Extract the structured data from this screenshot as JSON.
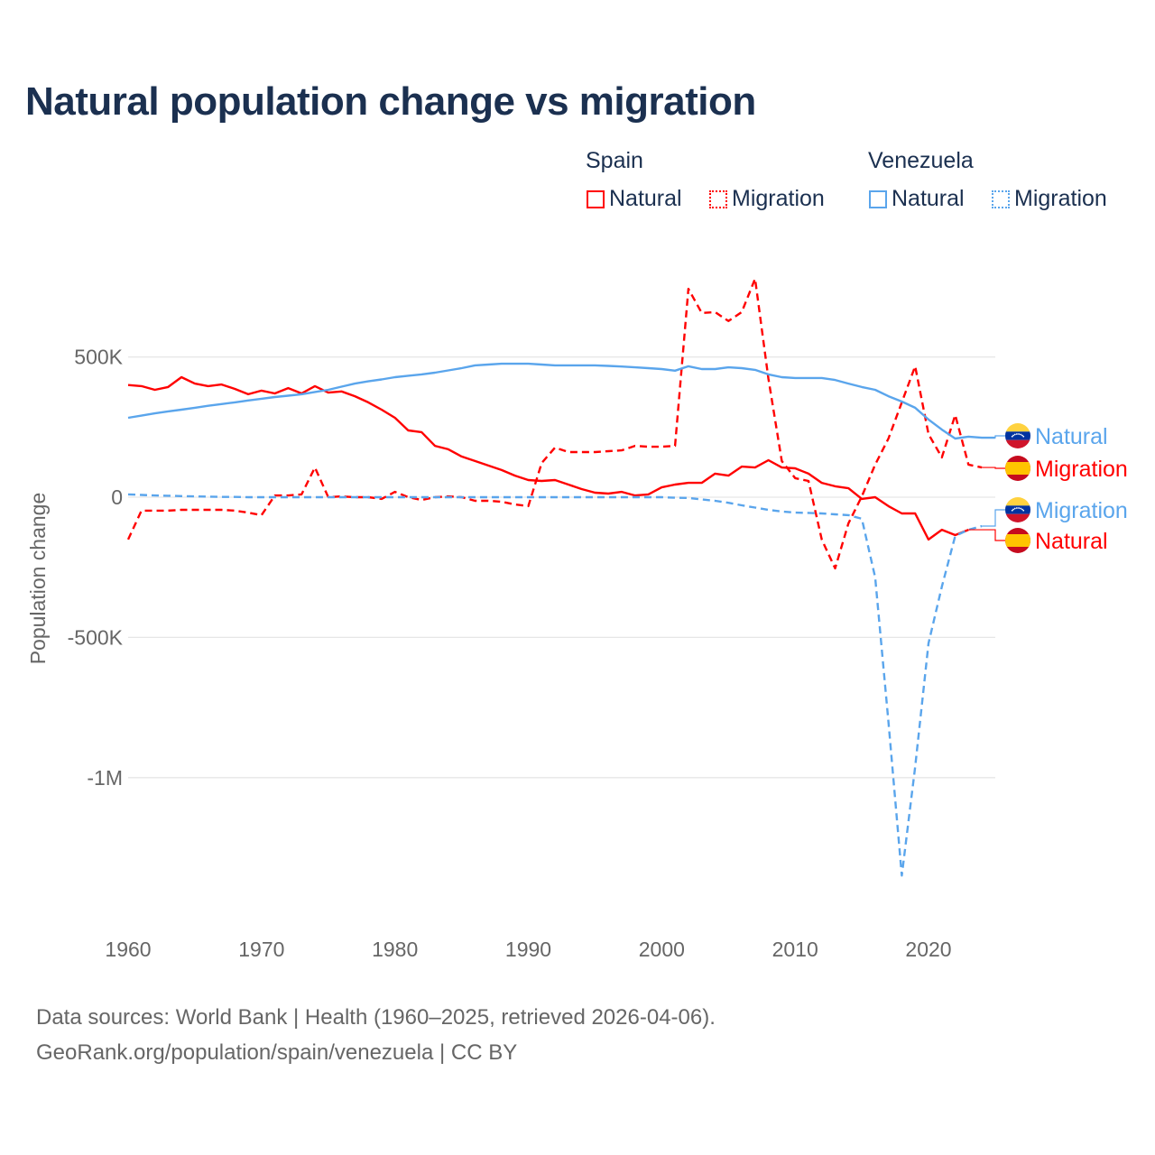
{
  "chart_data": {
    "type": "line",
    "title": "Natural population change vs migration",
    "xlabel": "",
    "ylabel": "Population change",
    "xlim": [
      1960,
      2025
    ],
    "ylim": [
      -1500000,
      800000
    ],
    "x_ticks": [
      1960,
      1970,
      1980,
      1990,
      2000,
      2010,
      2020
    ],
    "x_tick_labels": [
      "1960",
      "1970",
      "1980",
      "1990",
      "2000",
      "2010",
      "2020"
    ],
    "y_ticks": [
      500000,
      0,
      -500000,
      -1000000
    ],
    "y_tick_labels": [
      "500K",
      "0",
      "-500K",
      "-1M"
    ],
    "grid": true,
    "legend_placement": "top-right",
    "legend_groups": [
      "Spain",
      "Venezuela"
    ],
    "colors": {
      "Spain": "#ff0000",
      "Venezuela": "#5aa5ec"
    },
    "x_start": 1960,
    "series": [
      {
        "name": "Natural",
        "country": "Spain",
        "style": "solid",
        "end_label": "Natural",
        "values": [
          400,
          396,
          383,
          393,
          428,
          405,
          396,
          402,
          386,
          367,
          380,
          370,
          389,
          370,
          396,
          373,
          377,
          360,
          338,
          312,
          283,
          238,
          232,
          183,
          171,
          145,
          129,
          113,
          97,
          77,
          61,
          58,
          61,
          45,
          29,
          16,
          13,
          19,
          6,
          10,
          35,
          45,
          51,
          51,
          84,
          77,
          109,
          106,
          132,
          106,
          103,
          84,
          51,
          39,
          32,
          -6,
          0,
          -32,
          -58,
          -58,
          -151,
          -116,
          -135,
          -116
        ]
      },
      {
        "name": "Migration",
        "country": "Spain",
        "style": "dashed",
        "end_label": "Migration",
        "values": [
          -151,
          -48,
          -48,
          -48,
          -45,
          -45,
          -45,
          -45,
          -48,
          -55,
          -64,
          6,
          6,
          10,
          106,
          0,
          3,
          0,
          0,
          -6,
          19,
          0,
          -10,
          0,
          3,
          0,
          -13,
          -13,
          -16,
          -26,
          -32,
          122,
          177,
          161,
          161,
          161,
          164,
          167,
          183,
          180,
          180,
          183,
          743,
          657,
          660,
          628,
          660,
          779,
          422,
          129,
          68,
          58,
          -151,
          -254,
          -93,
          3,
          116,
          209,
          338,
          467,
          225,
          142,
          293,
          116,
          106
        ]
      },
      {
        "name": "Natural",
        "country": "Venezuela",
        "style": "solid",
        "end_label": "Natural",
        "values": [
          283,
          291,
          299,
          306,
          312,
          319,
          326,
          332,
          338,
          345,
          351,
          357,
          362,
          367,
          375,
          383,
          394,
          405,
          413,
          420,
          428,
          433,
          438,
          444,
          452,
          460,
          470,
          473,
          476,
          476,
          476,
          473,
          470,
          470,
          470,
          470,
          468,
          466,
          463,
          460,
          457,
          451,
          467,
          457,
          457,
          463,
          460,
          454,
          438,
          428,
          425,
          425,
          425,
          418,
          405,
          393,
          383,
          360,
          341,
          319,
          277,
          241,
          209,
          216,
          212,
          212
        ]
      },
      {
        "name": "Migration",
        "country": "Venezuela",
        "style": "dashed",
        "end_label": "Migration",
        "values": [
          10,
          8,
          6,
          5,
          4,
          3,
          2,
          1,
          1,
          0,
          0,
          0,
          0,
          0,
          0,
          0,
          0,
          0,
          0,
          0,
          0,
          0,
          0,
          0,
          0,
          0,
          0,
          0,
          0,
          0,
          0,
          0,
          0,
          0,
          0,
          0,
          0,
          0,
          0,
          0,
          0,
          -2,
          -3,
          -8,
          -13,
          -20,
          -29,
          -37,
          -45,
          -51,
          -55,
          -56,
          -58,
          -61,
          -64,
          -77,
          -286,
          -801,
          -1349,
          -962,
          -521,
          -319,
          -138,
          -116,
          -103
        ]
      }
    ],
    "units_note": "values in thousands"
  },
  "legend": {
    "spain": "Spain",
    "venezuela": "Venezuela",
    "natural": "Natural",
    "migration": "Migration"
  },
  "footer": {
    "line1": "Data sources: World Bank | Health (1960–2025, retrieved 2026-04-06).",
    "line2": "GeoRank.org/population/spain/venezuela | CC BY"
  }
}
